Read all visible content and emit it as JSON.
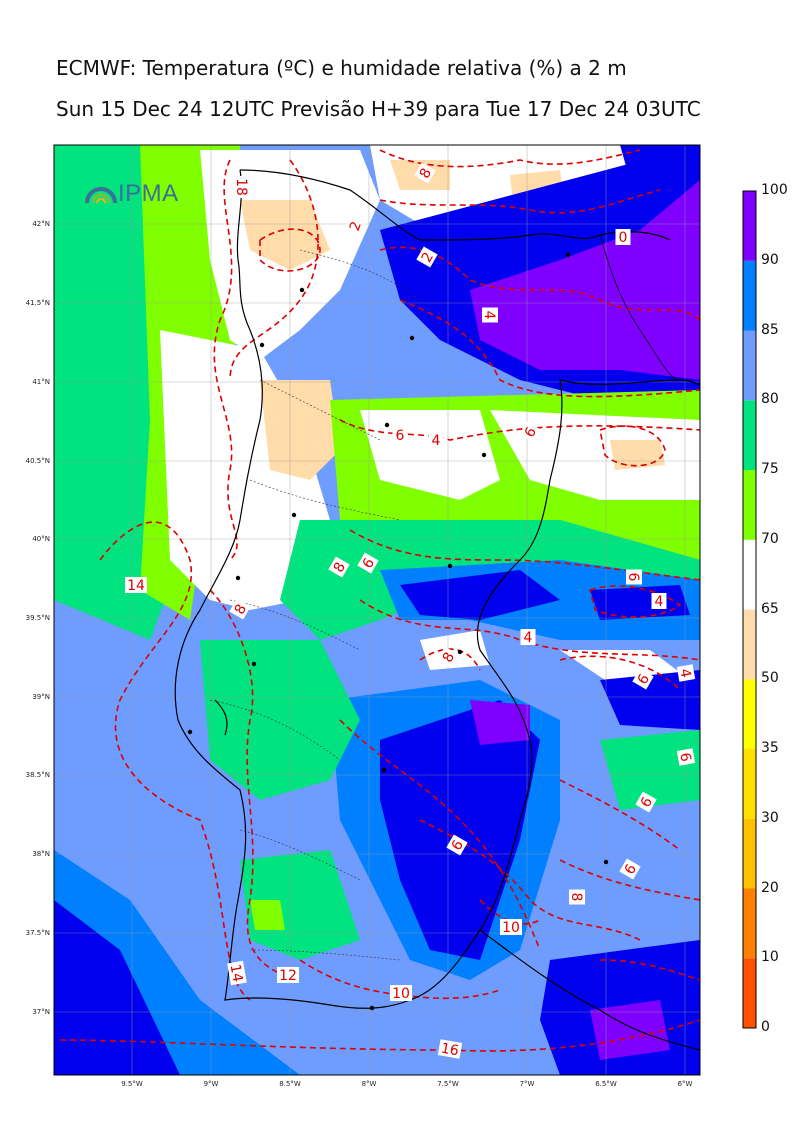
{
  "title_line1": "ECMWF: Temperatura (ºC) e humidade relativa (%) a 2 m",
  "title_line2": "Sun 15 Dec 24 12UTC Previsão H+39 para Tue 17 Dec 24 03UTC",
  "logo_text": "IPMA",
  "x_ticks": [
    "9.5°W",
    "9°W",
    "8.5°W",
    "8°W",
    "7.5°W",
    "7°W",
    "6.5°W",
    "6°W"
  ],
  "y_ticks": [
    "42°N",
    "41.5°N",
    "41°N",
    "40.5°N",
    "40°N",
    "39.5°N",
    "39°N",
    "38.5°N",
    "38°N",
    "37.5°N",
    "37°N"
  ],
  "colorbar": {
    "labels": [
      "0",
      "10",
      "20",
      "30",
      "35",
      "50",
      "65",
      "70",
      "75",
      "80",
      "85",
      "90",
      "100"
    ],
    "colors": [
      "#ff5000",
      "#ff7f00",
      "#ffc000",
      "#ffe000",
      "#ffff00",
      "#ffdcaa",
      "#ffffff",
      "#80ff00",
      "#00e37f",
      "#6e9cff",
      "#0080ff",
      "#0000ee",
      "#7f00ff"
    ]
  },
  "contour_labels": [
    "0",
    "2",
    "2",
    "4",
    "4",
    "4",
    "4",
    "4",
    "6",
    "6",
    "6",
    "6",
    "6",
    "6",
    "6",
    "6",
    "6",
    "8",
    "8",
    "8",
    "8",
    "8",
    "10",
    "10",
    "12",
    "14",
    "14",
    "16",
    "18"
  ],
  "colors": {
    "dashed_contour": "#dd0000",
    "grid": "#999999",
    "coast": "#000000"
  }
}
